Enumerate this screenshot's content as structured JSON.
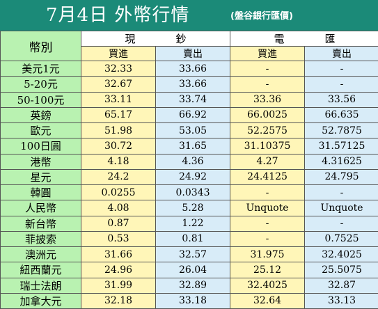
{
  "header": {
    "title": "7月4日 外幣行情",
    "subtitle": "(盤谷銀行匯價)"
  },
  "table": {
    "currency_label": "幣別",
    "groups": [
      "現鈔",
      "電匯"
    ],
    "subheaders": [
      "買進",
      "賣出",
      "買進",
      "賣出"
    ],
    "rows": [
      {
        "currency": "美元1元",
        "cash_buy": "32.33",
        "cash_sell": "33.66",
        "tt_buy": "-",
        "tt_sell": "-"
      },
      {
        "currency": "5-20元",
        "cash_buy": "32.67",
        "cash_sell": "33.66",
        "tt_buy": "-",
        "tt_sell": "-"
      },
      {
        "currency": "50-100元",
        "cash_buy": "33.11",
        "cash_sell": "33.74",
        "tt_buy": "33.36",
        "tt_sell": "33.56"
      },
      {
        "currency": "英鎊",
        "cash_buy": "65.17",
        "cash_sell": "66.92",
        "tt_buy": "66.0025",
        "tt_sell": "66.635"
      },
      {
        "currency": "歐元",
        "cash_buy": "51.98",
        "cash_sell": "53.05",
        "tt_buy": "52.2575",
        "tt_sell": "52.7875"
      },
      {
        "currency": "100日圓",
        "cash_buy": "30.72",
        "cash_sell": "31.65",
        "tt_buy": "31.10375",
        "tt_sell": "31.57125"
      },
      {
        "currency": "港幣",
        "cash_buy": "4.18",
        "cash_sell": "4.36",
        "tt_buy": "4.27",
        "tt_sell": "4.31625"
      },
      {
        "currency": "星元",
        "cash_buy": "24.2",
        "cash_sell": "24.92",
        "tt_buy": "24.4125",
        "tt_sell": "24.795"
      },
      {
        "currency": "韓圓",
        "cash_buy": "0.0255",
        "cash_sell": "0.0343",
        "tt_buy": "-",
        "tt_sell": "-"
      },
      {
        "currency": "人民幣",
        "cash_buy": "4.08",
        "cash_sell": "5.28",
        "tt_buy": "Unquote",
        "tt_sell": "Unquote"
      },
      {
        "currency": "新台幣",
        "cash_buy": "0.87",
        "cash_sell": "1.22",
        "tt_buy": "-",
        "tt_sell": "-"
      },
      {
        "currency": "菲披索",
        "cash_buy": "0.53",
        "cash_sell": "0.81",
        "tt_buy": "-",
        "tt_sell": "0.7525"
      },
      {
        "currency": "澳洲元",
        "cash_buy": "31.66",
        "cash_sell": "32.57",
        "tt_buy": "31.975",
        "tt_sell": "32.4025"
      },
      {
        "currency": "紐西蘭元",
        "cash_buy": "24.96",
        "cash_sell": "26.04",
        "tt_buy": "25.12",
        "tt_sell": "25.5075"
      },
      {
        "currency": "瑞士法朗",
        "cash_buy": "31.99",
        "cash_sell": "32.89",
        "tt_buy": "32.4025",
        "tt_sell": "32.87"
      },
      {
        "currency": "加拿大元",
        "cash_buy": "32.18",
        "cash_sell": "33.18",
        "tt_buy": "32.64",
        "tt_sell": "33.13"
      }
    ]
  }
}
